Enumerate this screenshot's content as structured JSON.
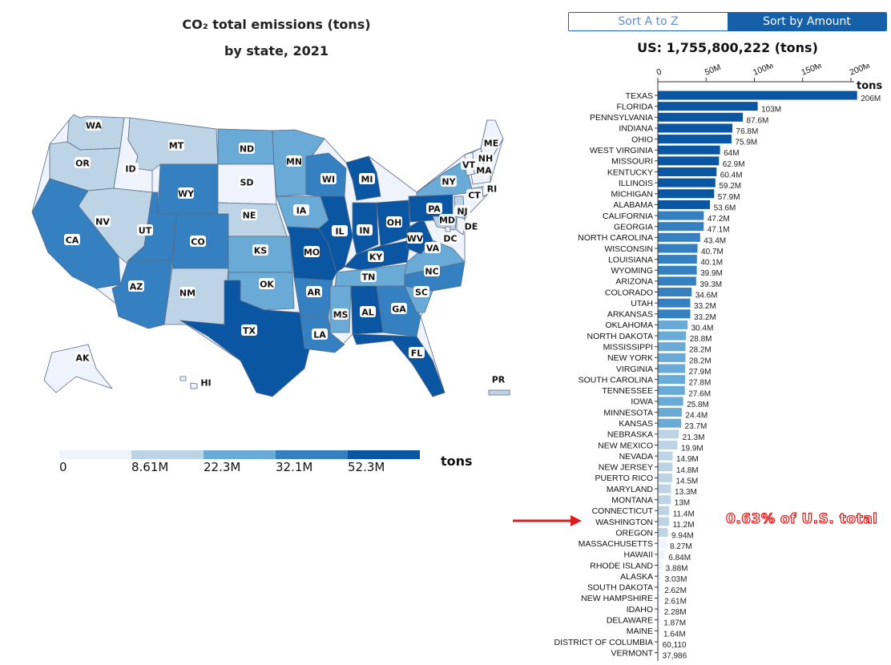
{
  "map": {
    "title_line1": "CO₂ total emissions (tons)",
    "title_line2": "by state, 2021"
  },
  "legend": {
    "ticks": [
      "0",
      "8.61M",
      "22.3M",
      "32.1M",
      "52.3M"
    ],
    "unit": "tons",
    "colors": [
      "#eef3fc",
      "#bcd4e6",
      "#6aaad6",
      "#3580c0",
      "#0b56a3"
    ]
  },
  "controls": {
    "sort_az": "Sort A to Z",
    "sort_amount": "Sort by Amount"
  },
  "us_total": "US: 1,755,800,222 (tons)",
  "annotation": {
    "text": "0.63% of U.S. total",
    "color": "#e01b1b"
  },
  "chart_data": {
    "type": "bar",
    "orientation": "horizontal",
    "title": "US: 1,755,800,222 (tons)",
    "xlabel": "tons",
    "xlim": [
      0,
      200000000
    ],
    "x_ticks": [
      "0",
      "50M",
      "100M",
      "150M",
      "200M"
    ],
    "categories": [
      "TEXAS",
      "FLORIDA",
      "PENNSYLVANIA",
      "INDIANA",
      "OHIO",
      "WEST VIRGINIA",
      "MISSOURI",
      "KENTUCKY",
      "ILLINOIS",
      "MICHIGAN",
      "ALABAMA",
      "CALIFORNIA",
      "GEORGIA",
      "NORTH CAROLINA",
      "WISCONSIN",
      "LOUISIANA",
      "WYOMING",
      "ARIZONA",
      "COLORADO",
      "UTAH",
      "ARKANSAS",
      "OKLAHOMA",
      "NORTH DAKOTA",
      "MISSISSIPPI",
      "NEW YORK",
      "VIRGINIA",
      "SOUTH CAROLINA",
      "TENNESSEE",
      "IOWA",
      "MINNESOTA",
      "KANSAS",
      "NEBRASKA",
      "NEW MEXICO",
      "NEVADA",
      "NEW JERSEY",
      "PUERTO RICO",
      "MARYLAND",
      "MONTANA",
      "CONNECTICUT",
      "WASHINGTON",
      "OREGON",
      "MASSACHUSETTS",
      "HAWAII",
      "RHODE ISLAND",
      "ALASKA",
      "SOUTH DAKOTA",
      "NEW HAMPSHIRE",
      "IDAHO",
      "DELAWARE",
      "MAINE",
      "DISTRICT OF COLUMBIA",
      "VERMONT"
    ],
    "values": [
      206000000,
      103000000,
      87600000,
      76800000,
      75900000,
      64000000,
      62900000,
      60400000,
      59200000,
      57900000,
      53600000,
      47200000,
      47100000,
      43400000,
      40700000,
      40100000,
      39900000,
      39300000,
      34600000,
      33200000,
      33200000,
      30400000,
      28800000,
      28200000,
      28200000,
      27900000,
      27800000,
      27600000,
      25800000,
      24400000,
      23700000,
      21300000,
      19900000,
      14900000,
      14800000,
      14500000,
      13300000,
      13000000,
      11400000,
      11200000,
      9940000,
      8270000,
      6840000,
      3880000,
      3030000,
      2620000,
      2610000,
      2280000,
      1870000,
      1640000,
      60110,
      37986
    ],
    "value_labels": [
      "206M",
      "103M",
      "87.6M",
      "76.8M",
      "75.9M",
      "64M",
      "62.9M",
      "60.4M",
      "59.2M",
      "57.9M",
      "53.6M",
      "47.2M",
      "47.1M",
      "43.4M",
      "40.7M",
      "40.1M",
      "39.9M",
      "39.3M",
      "34.6M",
      "33.2M",
      "33.2M",
      "30.4M",
      "28.8M",
      "28.2M",
      "28.2M",
      "27.9M",
      "27.8M",
      "27.6M",
      "25.8M",
      "24.4M",
      "23.7M",
      "21.3M",
      "19.9M",
      "14.9M",
      "14.8M",
      "14.5M",
      "13.3M",
      "13M",
      "11.4M",
      "11.2M",
      "9.94M",
      "8.27M",
      "6.84M",
      "3.88M",
      "3.03M",
      "2.62M",
      "2.61M",
      "2.28M",
      "1.87M",
      "1.64M",
      "60,110",
      "37,986"
    ],
    "color_breaks": [
      8610000,
      22300000,
      32100000,
      52300000
    ],
    "colors": [
      "#eef3fc",
      "#bcd4e6",
      "#6aaad6",
      "#3580c0",
      "#0b56a3"
    ]
  },
  "map_labels": [
    "WA",
    "OR",
    "CA",
    "ID",
    "NV",
    "MT",
    "WY",
    "UT",
    "AZ",
    "CO",
    "NM",
    "ND",
    "SD",
    "NE",
    "KS",
    "OK",
    "TX",
    "MN",
    "IA",
    "MO",
    "AR",
    "LA",
    "WI",
    "IL",
    "MI",
    "IN",
    "OH",
    "KY",
    "TN",
    "MS",
    "AL",
    "GA",
    "FL",
    "SC",
    "NC",
    "VA",
    "WV",
    "PA",
    "NY",
    "MD",
    "DE",
    "NJ",
    "CT",
    "RI",
    "MA",
    "VT",
    "NH",
    "ME",
    "DC",
    "AK",
    "HI",
    "PR"
  ]
}
